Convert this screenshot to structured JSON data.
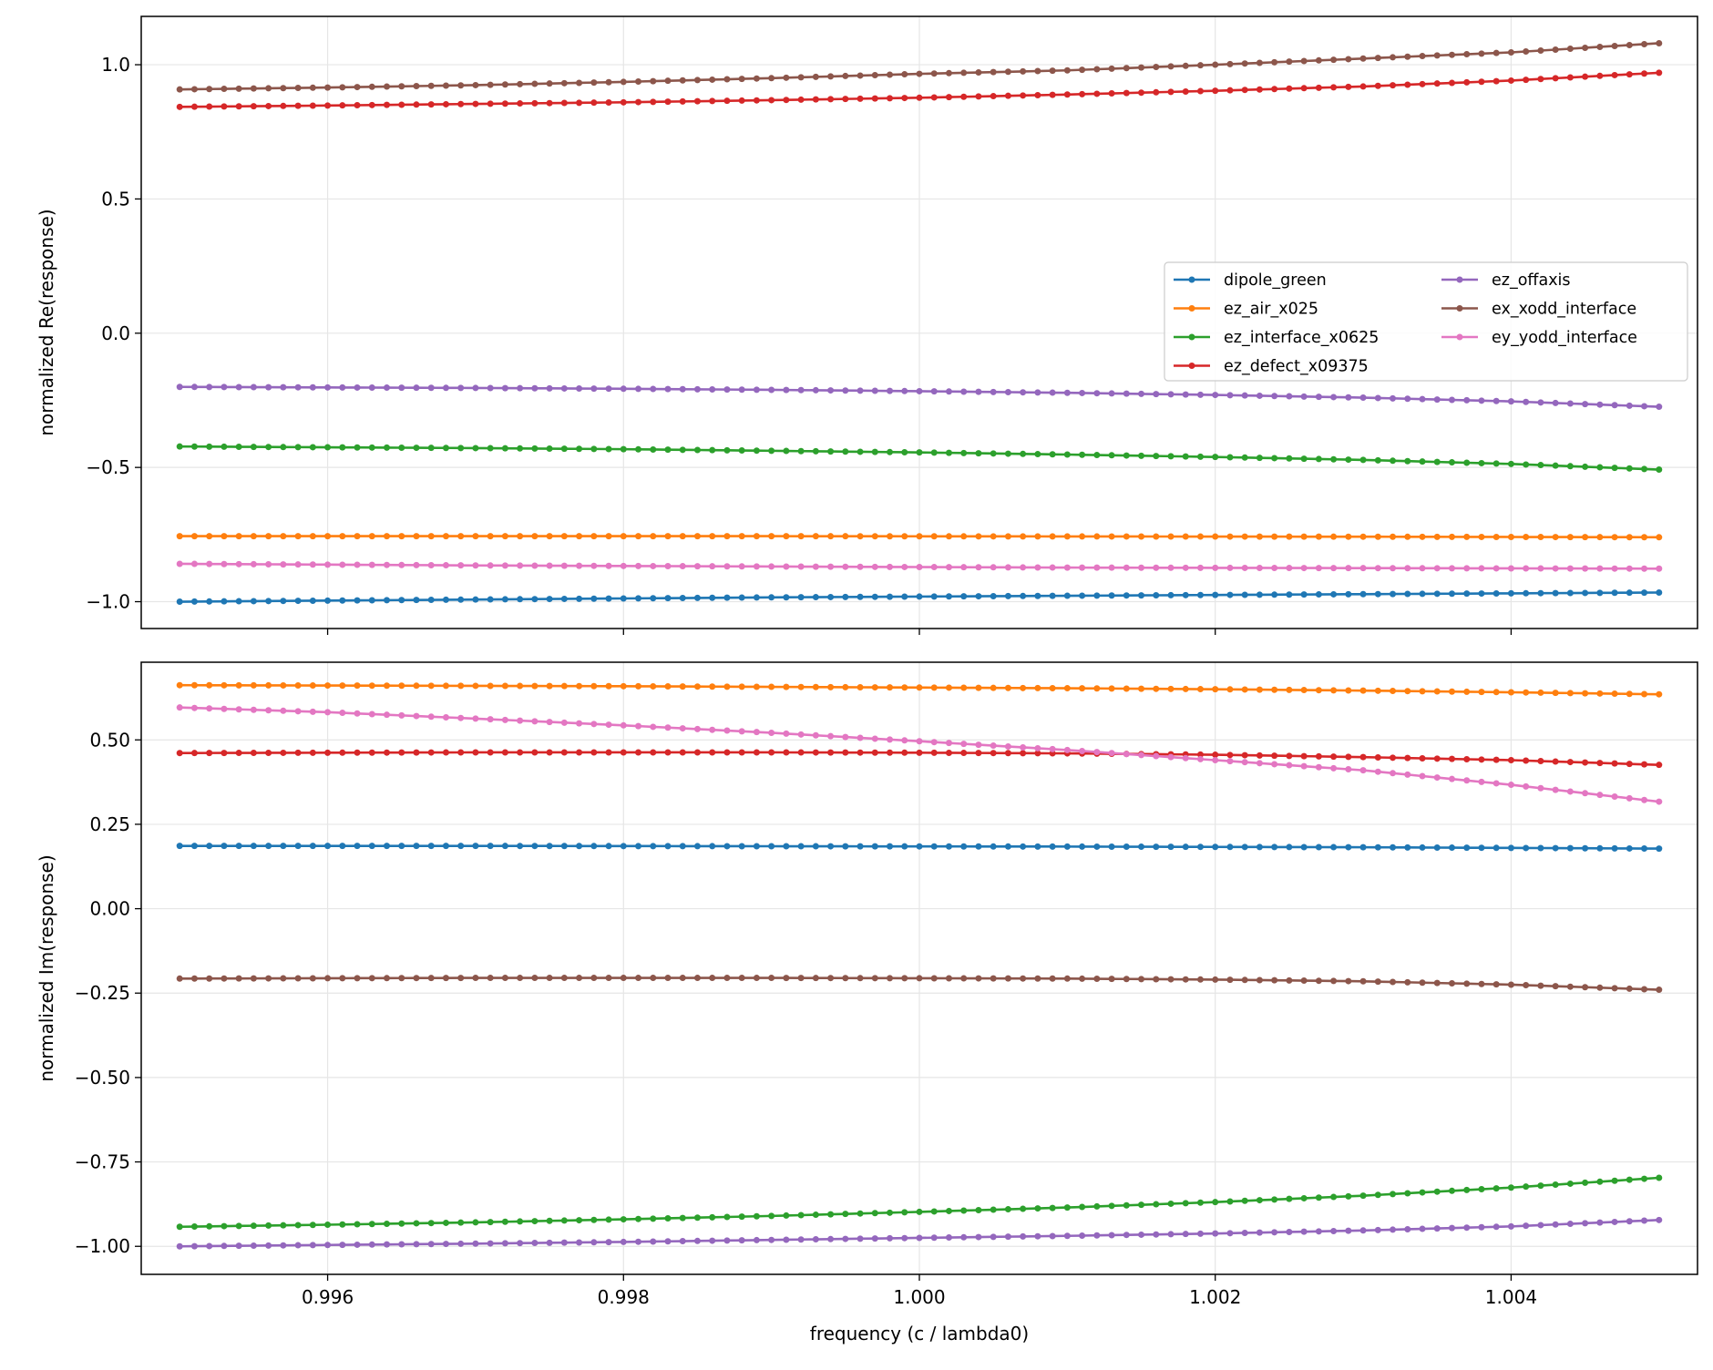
{
  "chart_data": [
    {
      "type": "line",
      "panel": "top",
      "xlabel": "",
      "ylabel": "normalized Re(response)",
      "xlim": [
        0.99474,
        1.00526
      ],
      "ylim": [
        -1.1,
        1.18
      ],
      "x_ticks": [
        0.996,
        0.998,
        1.0,
        1.002,
        1.004
      ],
      "x_tick_labels_visible": false,
      "y_ticks": [
        1.0,
        0.5,
        0.0,
        -0.5,
        -1.0
      ],
      "y_tick_labels": [
        "1.0",
        "0.5",
        "0.0",
        "−0.5",
        "−1.0"
      ],
      "grid": true,
      "legend": {
        "placement": "center-right",
        "columns": 2
      },
      "x": {
        "start": 0.995,
        "end": 1.005,
        "count": 101
      },
      "series": [
        {
          "name": "dipole_green",
          "color": "#1f77b4",
          "x": [
            0.995,
            0.996,
            0.997,
            0.998,
            0.999,
            1.0,
            1.001,
            1.002,
            1.003,
            1.004,
            1.005
          ],
          "y": [
            -1.0,
            -0.996,
            -0.992,
            -0.988,
            -0.984,
            -0.981,
            -0.978,
            -0.975,
            -0.972,
            -0.969,
            -0.966
          ]
        },
        {
          "name": "ez_air_x025",
          "color": "#ff7f0e",
          "x": [
            0.995,
            0.997,
            0.999,
            1.001,
            1.003,
            1.005
          ],
          "y": [
            -0.756,
            -0.756,
            -0.756,
            -0.757,
            -0.758,
            -0.76
          ]
        },
        {
          "name": "ez_interface_x0625",
          "color": "#2ca02c",
          "x": [
            0.995,
            0.996,
            0.997,
            0.998,
            0.999,
            1.0,
            1.001,
            1.002,
            1.003,
            1.004,
            1.005
          ],
          "y": [
            -0.422,
            -0.425,
            -0.428,
            -0.432,
            -0.438,
            -0.444,
            -0.452,
            -0.461,
            -0.472,
            -0.487,
            -0.508
          ]
        },
        {
          "name": "ez_defect_x09375",
          "color": "#d62728",
          "x": [
            0.995,
            0.996,
            0.997,
            0.998,
            0.999,
            1.0,
            1.001,
            1.002,
            1.003,
            1.004,
            1.005
          ],
          "y": [
            0.843,
            0.848,
            0.854,
            0.86,
            0.868,
            0.877,
            0.889,
            0.903,
            0.919,
            0.941,
            0.97
          ]
        },
        {
          "name": "ez_offaxis",
          "color": "#9467bd",
          "x": [
            0.995,
            0.996,
            0.997,
            0.998,
            0.999,
            1.0,
            1.001,
            1.002,
            1.003,
            1.004,
            1.005
          ],
          "y": [
            -0.2,
            -0.202,
            -0.204,
            -0.207,
            -0.211,
            -0.216,
            -0.222,
            -0.23,
            -0.24,
            -0.254,
            -0.274
          ]
        },
        {
          "name": "ex_xodd_interface",
          "color": "#8c564b",
          "x": [
            0.995,
            0.996,
            0.997,
            0.998,
            0.999,
            1.0,
            1.001,
            1.002,
            1.003,
            1.004,
            1.005
          ],
          "y": [
            0.908,
            0.915,
            0.924,
            0.936,
            0.95,
            0.966,
            0.979,
            1.0,
            1.023,
            1.046,
            1.08
          ]
        },
        {
          "name": "ey_yodd_interface",
          "color": "#e377c2",
          "x": [
            0.995,
            0.996,
            0.997,
            0.998,
            0.999,
            1.0,
            1.001,
            1.002,
            1.003,
            1.004,
            1.005
          ],
          "y": [
            -0.859,
            -0.862,
            -0.865,
            -0.867,
            -0.869,
            -0.871,
            -0.873,
            -0.874,
            -0.875,
            -0.876,
            -0.877
          ]
        }
      ]
    },
    {
      "type": "line",
      "panel": "bottom",
      "xlabel": "frequency (c / lambda0)",
      "ylabel": "normalized Im(response)",
      "xlim": [
        0.99474,
        1.00526
      ],
      "ylim": [
        -1.083,
        0.73
      ],
      "x_ticks": [
        0.996,
        0.998,
        1.0,
        1.002,
        1.004
      ],
      "x_tick_labels": [
        "0.996",
        "0.998",
        "1.000",
        "1.002",
        "1.004"
      ],
      "y_ticks": [
        0.5,
        0.25,
        0.0,
        -0.25,
        -0.5,
        -0.75,
        -1.0
      ],
      "y_tick_labels": [
        "0.50",
        "0.25",
        "0.00",
        "−0.25",
        "−0.50",
        "−0.75",
        "−1.00"
      ],
      "grid": true,
      "x": {
        "start": 0.995,
        "end": 1.005,
        "count": 101
      },
      "series": [
        {
          "name": "dipole_green",
          "color": "#1f77b4",
          "x": [
            0.995,
            0.997,
            0.999,
            1.001,
            1.003,
            1.005
          ],
          "y": [
            0.186,
            0.186,
            0.185,
            0.184,
            0.182,
            0.178
          ]
        },
        {
          "name": "ez_air_x025",
          "color": "#ff7f0e",
          "x": [
            0.995,
            0.996,
            0.997,
            0.998,
            0.999,
            1.0,
            1.001,
            1.002,
            1.003,
            1.004,
            1.005
          ],
          "y": [
            0.662,
            0.661,
            0.66,
            0.659,
            0.657,
            0.655,
            0.653,
            0.65,
            0.646,
            0.641,
            0.635
          ]
        },
        {
          "name": "ez_interface_x0625",
          "color": "#2ca02c",
          "x": [
            0.995,
            0.996,
            0.997,
            0.998,
            0.999,
            1.0,
            1.001,
            1.002,
            1.003,
            1.004,
            1.005
          ],
          "y": [
            -0.942,
            -0.936,
            -0.929,
            -0.92,
            -0.91,
            -0.898,
            -0.885,
            -0.869,
            -0.85,
            -0.826,
            -0.797
          ]
        },
        {
          "name": "ez_defect_x09375",
          "color": "#d62728",
          "x": [
            0.995,
            0.996,
            0.997,
            0.998,
            0.999,
            1.0,
            1.001,
            1.002,
            1.003,
            1.004,
            1.005
          ],
          "y": [
            0.461,
            0.462,
            0.463,
            0.463,
            0.463,
            0.462,
            0.46,
            0.456,
            0.449,
            0.44,
            0.426
          ]
        },
        {
          "name": "ez_offaxis",
          "color": "#9467bd",
          "x": [
            0.995,
            0.996,
            0.997,
            0.998,
            0.999,
            1.0,
            1.001,
            1.002,
            1.003,
            1.004,
            1.005
          ],
          "y": [
            -1.0,
            -0.996,
            -0.992,
            -0.987,
            -0.981,
            -0.975,
            -0.969,
            -0.962,
            -0.953,
            -0.941,
            -0.922
          ]
        },
        {
          "name": "ex_xodd_interface",
          "color": "#8c564b",
          "x": [
            0.995,
            0.996,
            0.997,
            0.998,
            0.999,
            1.0,
            1.001,
            1.002,
            1.003,
            1.004,
            1.005
          ],
          "y": [
            -0.207,
            -0.206,
            -0.205,
            -0.205,
            -0.205,
            -0.206,
            -0.207,
            -0.21,
            -0.215,
            -0.225,
            -0.24
          ]
        },
        {
          "name": "ey_yodd_interface",
          "color": "#e377c2",
          "x": [
            0.995,
            0.996,
            0.997,
            0.998,
            0.999,
            1.0,
            1.001,
            1.002,
            1.003,
            1.004,
            1.005
          ],
          "y": [
            0.596,
            0.582,
            0.563,
            0.543,
            0.521,
            0.496,
            0.47,
            0.44,
            0.41,
            0.367,
            0.317
          ]
        }
      ]
    }
  ]
}
